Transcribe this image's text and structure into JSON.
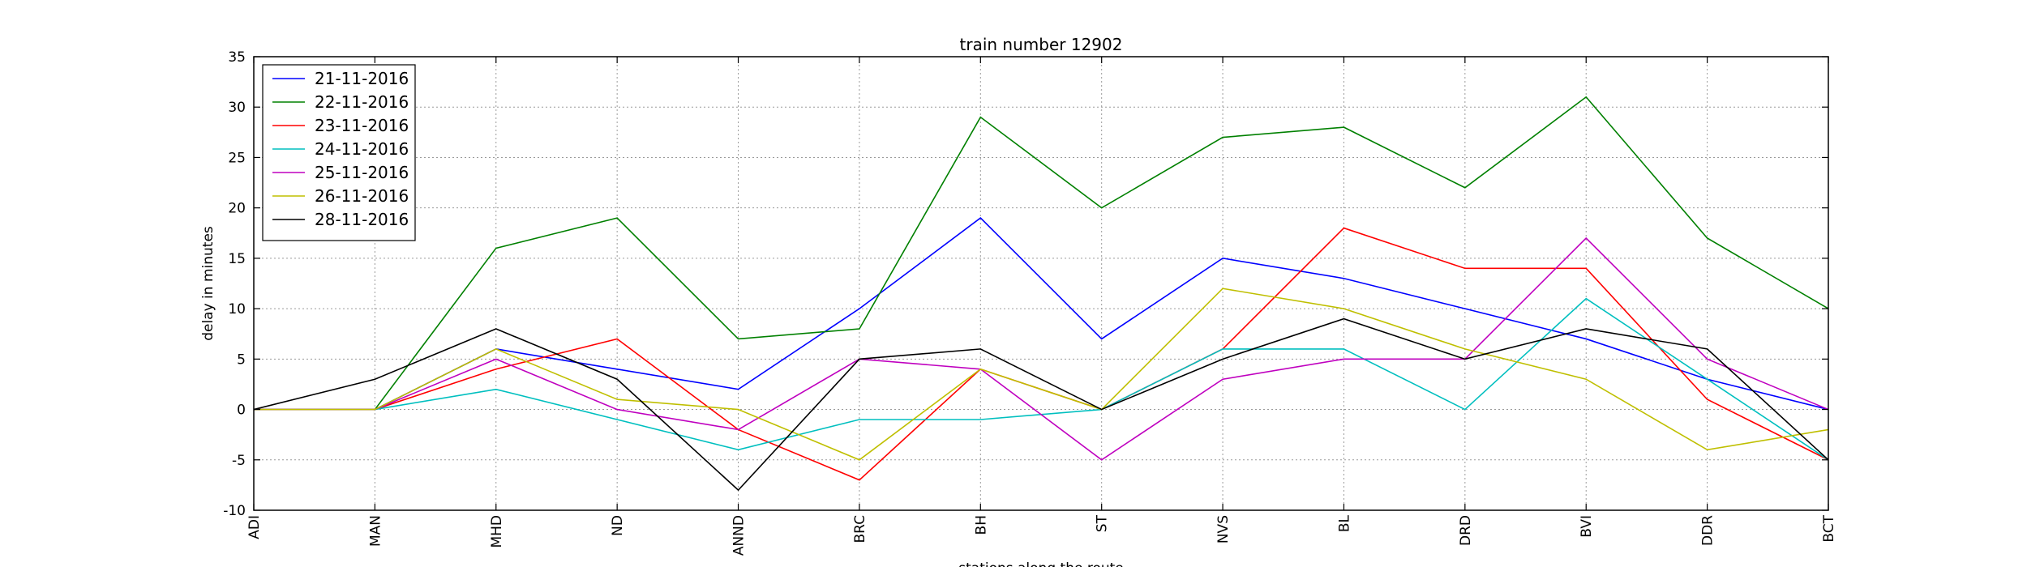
{
  "chart_data": {
    "type": "line",
    "title": "train number 12902",
    "xlabel": "stations along the route",
    "ylabel": "delay in minutes",
    "categories": [
      "ADI",
      "MAN",
      "MHD",
      "ND",
      "ANND",
      "BRC",
      "BH",
      "ST",
      "NVS",
      "BL",
      "DRD",
      "BVI",
      "DDR",
      "BCT"
    ],
    "ylim": [
      -10,
      35
    ],
    "yticks": [
      -10,
      -5,
      0,
      5,
      10,
      15,
      20,
      25,
      30,
      35
    ],
    "grid": true,
    "legend_position": "top-left",
    "series": [
      {
        "name": "21-11-2016",
        "color": "#0000ff",
        "values": [
          0,
          0,
          6,
          4,
          2,
          10,
          19,
          7,
          15,
          13,
          10,
          7,
          3,
          0
        ]
      },
      {
        "name": "22-11-2016",
        "color": "#008000",
        "values": [
          0,
          0,
          16,
          19,
          7,
          8,
          29,
          20,
          27,
          28,
          22,
          31,
          17,
          10
        ]
      },
      {
        "name": "23-11-2016",
        "color": "#ff0000",
        "values": [
          0,
          0,
          4,
          7,
          -2,
          -7,
          4,
          0,
          6,
          18,
          14,
          14,
          1,
          -5
        ]
      },
      {
        "name": "24-11-2016",
        "color": "#00bfbf",
        "values": [
          0,
          0,
          2,
          -1,
          -4,
          -1,
          -1,
          0,
          6,
          6,
          0,
          11,
          3,
          -5
        ]
      },
      {
        "name": "25-11-2016",
        "color": "#bf00bf",
        "values": [
          0,
          0,
          5,
          0,
          -2,
          5,
          4,
          -5,
          3,
          5,
          5,
          17,
          5,
          0
        ]
      },
      {
        "name": "26-11-2016",
        "color": "#bfbf00",
        "values": [
          0,
          0,
          6,
          1,
          0,
          -5,
          4,
          0,
          12,
          10,
          6,
          3,
          -4,
          -2
        ]
      },
      {
        "name": "28-11-2016",
        "color": "#000000",
        "values": [
          0,
          3,
          8,
          3,
          -8,
          5,
          6,
          0,
          5,
          9,
          5,
          8,
          6,
          -5
        ]
      }
    ]
  }
}
